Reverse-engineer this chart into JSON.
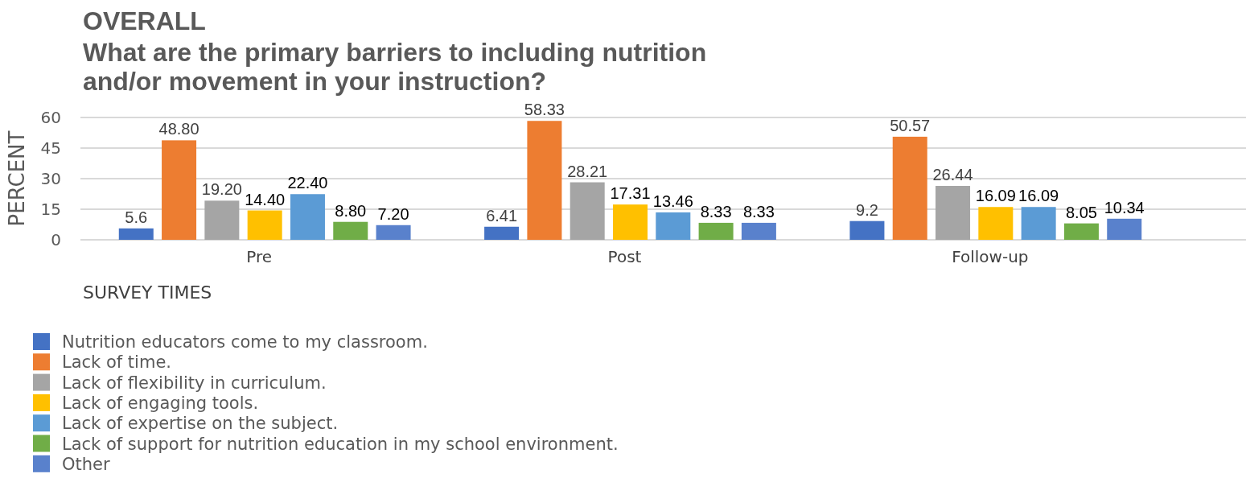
{
  "chart_data": {
    "type": "bar",
    "title": "OVERALL",
    "subtitle": "What are the primary barriers to including nutrition and/or movement in your instruction?",
    "xlabel": "SURVEY TIMES",
    "ylabel": "PERCENT",
    "categories": [
      "Pre",
      "Post",
      "Follow-up"
    ],
    "series": [
      {
        "name": "Nutrition educators come to my classroom.",
        "color": "#4472c4",
        "values": [
          5.6,
          6.41,
          9.2
        ],
        "value_labels": [
          "5.6",
          "6.41",
          "9.2"
        ]
      },
      {
        "name": "Lack of time.",
        "color": "#ed7d31",
        "values": [
          48.8,
          58.33,
          50.57
        ],
        "value_labels": [
          "48.80",
          "58.33",
          "50.57"
        ]
      },
      {
        "name": "Lack of flexibility in curriculum.",
        "color": "#a5a5a5",
        "values": [
          19.2,
          28.21,
          26.44
        ],
        "value_labels": [
          "19.20",
          "28.21",
          "26.44"
        ]
      },
      {
        "name": "Lack of engaging tools.",
        "color": "#ffc000",
        "values": [
          14.4,
          17.31,
          16.09
        ],
        "value_labels": [
          "14.40",
          "17.31",
          "16.09"
        ]
      },
      {
        "name": "Lack of expertise on the subject.",
        "color": "#5b9bd5",
        "values": [
          22.4,
          13.46,
          16.09
        ],
        "value_labels": [
          "22.40",
          "13.46",
          "16.09"
        ]
      },
      {
        "name": "Lack of support for nutrition education in my school environment.",
        "color": "#70ad47",
        "values": [
          8.8,
          8.33,
          8.05
        ],
        "value_labels": [
          "8.80",
          "8.33",
          "8.05"
        ]
      },
      {
        "name": "Other",
        "color": "#5981cc",
        "values": [
          7.2,
          8.33,
          10.34
        ],
        "value_labels": [
          "7.20",
          "8.33",
          "10.34"
        ]
      }
    ],
    "ylim": [
      0,
      60
    ],
    "yticks": [
      0,
      15,
      30,
      45,
      60
    ],
    "grid": "y",
    "legend": "bottom left"
  }
}
